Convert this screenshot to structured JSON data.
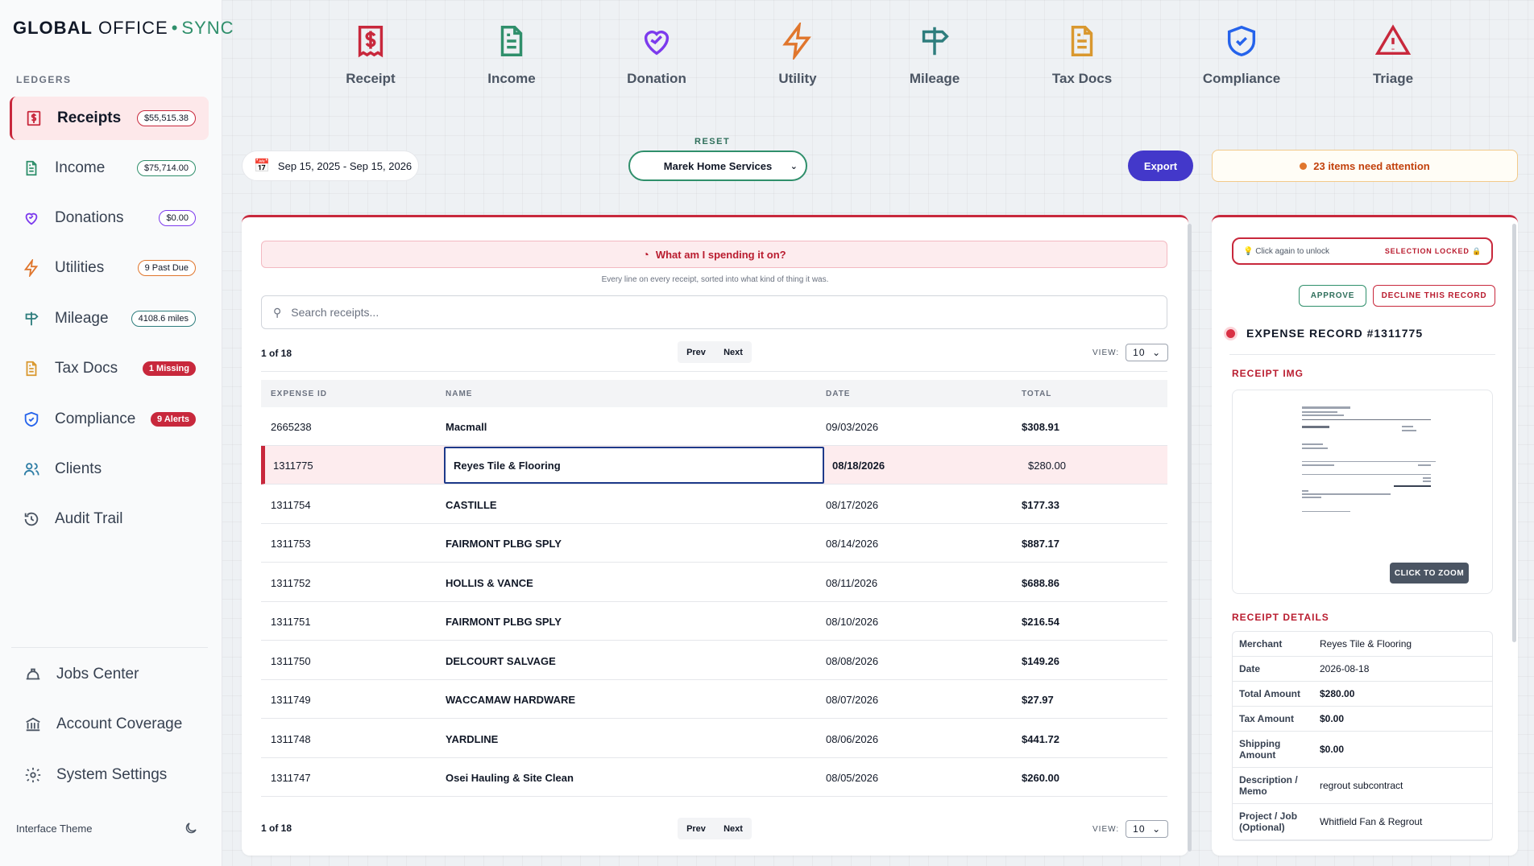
{
  "brand": {
    "part1": "GLOBAL",
    "part2": "OFFICE",
    "separator": "•",
    "part3": "SYNC"
  },
  "sidebar": {
    "section_label": "LEDGERS",
    "items": [
      {
        "label": "Receipts",
        "badge": "$55,515.38",
        "icon": "receipt-icon",
        "active": true
      },
      {
        "label": "Income",
        "badge": "$75,714.00",
        "icon": "income-document-icon"
      },
      {
        "label": "Donations",
        "badge": "$0.00",
        "icon": "heart-icon"
      },
      {
        "label": "Utilities",
        "badge": "9 Past Due",
        "icon": "lightning-icon"
      },
      {
        "label": "Mileage",
        "badge": "4108.6 miles",
        "icon": "signpost-icon"
      },
      {
        "label": "Tax Docs",
        "badge": "1 Missing",
        "icon": "tax-document-icon"
      },
      {
        "label": "Compliance",
        "badge": "9 Alerts",
        "icon": "shield-check-icon"
      },
      {
        "label": "Clients",
        "badge": "",
        "icon": "users-icon"
      },
      {
        "label": "Audit Trail",
        "badge": "",
        "icon": "history-icon"
      }
    ],
    "bottom_items": [
      {
        "label": "Jobs Center",
        "icon": "hard-hat-icon"
      },
      {
        "label": "Account Coverage",
        "icon": "bank-icon"
      },
      {
        "label": "System Settings",
        "icon": "gear-icon"
      }
    ],
    "theme_label": "Interface Theme",
    "theme_icon": "moon-icon"
  },
  "categories": [
    {
      "label": "Receipt",
      "icon": "receipt-icon",
      "color": "#c8283c"
    },
    {
      "label": "Income",
      "icon": "document-icon",
      "color": "#2f8f6b"
    },
    {
      "label": "Donation",
      "icon": "heart-icon",
      "color": "#7c3aed"
    },
    {
      "label": "Utility",
      "icon": "lightning-icon",
      "color": "#e0762d"
    },
    {
      "label": "Mileage",
      "icon": "signpost-icon",
      "color": "#2e7d7d"
    },
    {
      "label": "Tax Docs",
      "icon": "document-icon",
      "color": "#d9982f"
    },
    {
      "label": "Compliance",
      "icon": "shield-check-icon",
      "color": "#2563eb"
    },
    {
      "label": "Triage",
      "icon": "warning-icon",
      "color": "#c8283c"
    }
  ],
  "filters": {
    "date_range": "Sep 15, 2025 - Sep 15, 2026",
    "reset_label": "RESET",
    "client": "Marek Home Services",
    "export_label": "Export",
    "attention": "23 items need attention"
  },
  "main": {
    "spend_banner": "What am I spending it on?",
    "spend_sub": "Every line on every receipt, sorted into what kind of thing it was.",
    "search_placeholder": "Search receipts...",
    "pager_count": "1 of 18",
    "prev_label": "Prev",
    "next_label": "Next",
    "view_label": "VIEW:",
    "view_value": "10",
    "columns": [
      "EXPENSE ID",
      "NAME",
      "DATE",
      "TOTAL"
    ],
    "rows": [
      {
        "id": "2665238",
        "name": "Macmall",
        "date": "09/03/2026",
        "total": "$308.91"
      },
      {
        "id": "1311775",
        "name": "Reyes Tile & Flooring",
        "date": "08/18/2026",
        "total": "$280.00",
        "selected": true
      },
      {
        "id": "1311754",
        "name": "CASTILLE",
        "date": "08/17/2026",
        "total": "$177.33"
      },
      {
        "id": "1311753",
        "name": "FAIRMONT PLBG SPLY",
        "date": "08/14/2026",
        "total": "$887.17"
      },
      {
        "id": "1311752",
        "name": "HOLLIS & VANCE",
        "date": "08/11/2026",
        "total": "$688.86"
      },
      {
        "id": "1311751",
        "name": "FAIRMONT PLBG SPLY",
        "date": "08/10/2026",
        "total": "$216.54"
      },
      {
        "id": "1311750",
        "name": "DELCOURT SALVAGE",
        "date": "08/08/2026",
        "total": "$149.26"
      },
      {
        "id": "1311749",
        "name": "WACCAMAW HARDWARE",
        "date": "08/07/2026",
        "total": "$27.97"
      },
      {
        "id": "1311748",
        "name": "YARDLINE",
        "date": "08/06/2026",
        "total": "$441.72"
      },
      {
        "id": "1311747",
        "name": "Osei Hauling & Site Clean",
        "date": "08/05/2026",
        "total": "$260.00"
      }
    ]
  },
  "panel": {
    "unlock_text": "Click again to unlock",
    "locked_text": "SELECTION LOCKED",
    "approve_label": "APPROVE",
    "decline_label": "DECLINE THIS RECORD",
    "record_title": "EXPENSE RECORD #1311775",
    "receipt_img_heading": "RECEIPT IMG",
    "zoom_label": "CLICK TO ZOOM",
    "details_heading": "RECEIPT DETAILS",
    "details": [
      {
        "key": "Merchant",
        "value": "Reyes Tile & Flooring"
      },
      {
        "key": "Date",
        "value": "2026-08-18"
      },
      {
        "key": "Total Amount",
        "value": "$280.00",
        "bold": true
      },
      {
        "key": "Tax Amount",
        "value": "$0.00",
        "bold": true
      },
      {
        "key": "Shipping Amount",
        "value": "$0.00",
        "bold": true
      },
      {
        "key": "Description / Memo",
        "value": "regrout subcontract"
      },
      {
        "key": "Project / Job (Optional)",
        "value": "Whitfield Fan & Regrout"
      }
    ]
  }
}
